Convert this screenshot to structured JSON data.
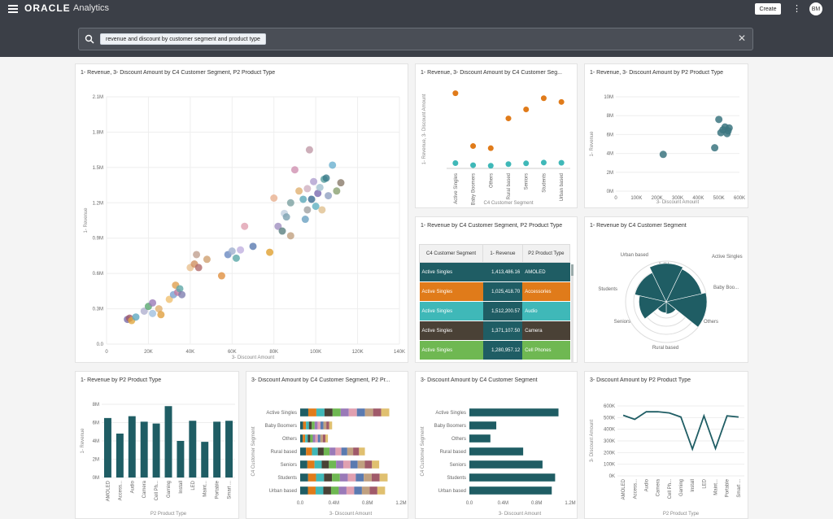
{
  "header": {
    "logo": "ORACLE",
    "app_name": "Analytics",
    "create_label": "Create",
    "menu_label": "⋮",
    "avatar_initials": "BM"
  },
  "search": {
    "query": "revenue and discount by customer segment and product type",
    "clear_label": "✕"
  },
  "colors": {
    "teal": "#1f5d64",
    "orange": "#e07b1a",
    "aqua": "#3fb8b8"
  },
  "cards": [
    {
      "title": "1- Revenue, 3- Discount Amount by C4 Customer Segment, P2 Product Type"
    },
    {
      "title": "1- Revenue, 3- Discount Amount by C4 Customer Seg..."
    },
    {
      "title": "1- Revenue, 3- Discount Amount by P2 Product Type"
    },
    {
      "title": "1- Revenue by C4 Customer Segment, P2 Product Type"
    },
    {
      "title": "1- Revenue by C4 Customer Segment"
    },
    {
      "title": "1- Revenue by P2 Product Type"
    },
    {
      "title": "3- Discount Amount by C4 Customer Segment, P2 Pr..."
    },
    {
      "title": "3- Discount Amount by C4 Customer Segment"
    },
    {
      "title": "3- Discount Amount by P2 Product Type"
    }
  ],
  "chart_data": [
    {
      "type": "scatter",
      "title": "1- Revenue, 3- Discount Amount by C4 Customer Segment, P2 Product Type",
      "xlabel": "3- Discount Amount",
      "ylabel": "1- Revenue",
      "xlim": [
        0,
        140000
      ],
      "ylim": [
        0,
        2100000
      ],
      "xticks": [
        "0",
        "20K",
        "40K",
        "60K",
        "80K",
        "100K",
        "120K",
        "140K"
      ],
      "yticks": [
        "0.0",
        "0.3M",
        "0.6M",
        "0.9M",
        "1.2M",
        "1.5M",
        "1.8M",
        "2.1M"
      ],
      "points": [
        [
          10000,
          210000,
          "#7a6ba8"
        ],
        [
          11000,
          220000,
          "#a05a6a"
        ],
        [
          12000,
          200000,
          "#e0a840"
        ],
        [
          14000,
          230000,
          "#5fa8c0"
        ],
        [
          18000,
          280000,
          "#b0b0d0"
        ],
        [
          20000,
          320000,
          "#5aa870"
        ],
        [
          22000,
          350000,
          "#9a7ab8"
        ],
        [
          25000,
          300000,
          "#e0b070"
        ],
        [
          30000,
          380000,
          "#f0c070"
        ],
        [
          32000,
          420000,
          "#7aa0d0"
        ],
        [
          33000,
          500000,
          "#e0a050"
        ],
        [
          34000,
          440000,
          "#c07aa0"
        ],
        [
          35000,
          470000,
          "#5fa8a8"
        ],
        [
          36000,
          420000,
          "#8080b0"
        ],
        [
          22000,
          260000,
          "#a0c0e0"
        ],
        [
          26000,
          250000,
          "#e0a040"
        ],
        [
          40000,
          650000,
          "#e8c090"
        ],
        [
          42000,
          680000,
          "#d09060"
        ],
        [
          43000,
          760000,
          "#c0a090"
        ],
        [
          44000,
          650000,
          "#b06a6a"
        ],
        [
          48000,
          720000,
          "#d0a070"
        ],
        [
          55000,
          580000,
          "#e09040"
        ],
        [
          58000,
          760000,
          "#6a8ac0"
        ],
        [
          60000,
          790000,
          "#a0b0d0"
        ],
        [
          62000,
          730000,
          "#5aa8a8"
        ],
        [
          64000,
          800000,
          "#c0b0e0"
        ],
        [
          66000,
          1000000,
          "#e0a0b0"
        ],
        [
          70000,
          830000,
          "#5a7ab0"
        ],
        [
          78000,
          780000,
          "#e0a030"
        ],
        [
          80000,
          1240000,
          "#e8b090"
        ],
        [
          82000,
          1000000,
          "#a090c0"
        ],
        [
          84000,
          960000,
          "#5a8080"
        ],
        [
          85000,
          1110000,
          "#c0d0e0"
        ],
        [
          86000,
          1080000,
          "#7aa0b0"
        ],
        [
          88000,
          920000,
          "#c0a080"
        ],
        [
          90000,
          1480000,
          "#d090b0"
        ],
        [
          92000,
          1300000,
          "#e0b070"
        ],
        [
          94000,
          1230000,
          "#5aa8b8"
        ],
        [
          95000,
          1060000,
          "#6aa0c0"
        ],
        [
          96000,
          1140000,
          "#a0a0a0"
        ],
        [
          97000,
          1650000,
          "#c09aa8"
        ],
        [
          98000,
          1230000,
          "#3a6a90"
        ],
        [
          99000,
          1380000,
          "#b0a0d0"
        ],
        [
          100000,
          1170000,
          "#5fb0c0"
        ],
        [
          101000,
          1280000,
          "#7a6ab0"
        ],
        [
          102000,
          1330000,
          "#a0c0d0"
        ],
        [
          103000,
          1140000,
          "#e0c090"
        ],
        [
          104000,
          1400000,
          "#5aa0a0"
        ],
        [
          105000,
          1410000,
          "#3a7a8a"
        ],
        [
          106000,
          1260000,
          "#90a0c0"
        ],
        [
          108000,
          1520000,
          "#6ab0d0"
        ],
        [
          110000,
          1300000,
          "#8aa070"
        ],
        [
          112000,
          1370000,
          "#8a7a6a"
        ],
        [
          96000,
          1320000,
          "#d0b0c0"
        ],
        [
          88000,
          1200000,
          "#7aa0a0"
        ]
      ]
    },
    {
      "type": "scatter",
      "title": "1- Revenue, 3- Discount Amount by C4 Customer Segment",
      "xlabel": "C4 Customer Segment",
      "ylabel": "1- Revenue, 3- Discount Amount",
      "categories": [
        "Active Singles",
        "Baby Boomers",
        "Others",
        "Rural based",
        "Seniors",
        "Students",
        "Urban based"
      ],
      "series": [
        {
          "name": "1- Revenue",
          "values": [
            1413486,
            420000,
            380000,
            940000,
            1110000,
            1320000,
            1250000
          ]
        },
        {
          "name": "3- Discount Amount",
          "values": [
            100000,
            60000,
            50000,
            80000,
            95000,
            110000,
            105000
          ]
        }
      ]
    },
    {
      "type": "scatter",
      "title": "1- Revenue, 3- Discount Amount by P2 Product Type",
      "xlabel": "3- Discount Amount",
      "ylabel": "1- Revenue",
      "xlim": [
        0,
        600000
      ],
      "ylim": [
        0,
        10000000
      ],
      "xticks": [
        "0",
        "100K",
        "200K",
        "300K",
        "400K",
        "500K",
        "600K"
      ],
      "yticks": [
        "0M",
        "2M",
        "4M",
        "6M",
        "8M",
        "10M"
      ],
      "points": [
        [
          230000,
          3900000
        ],
        [
          480000,
          4600000
        ],
        [
          500000,
          7600000
        ],
        [
          510000,
          6200000
        ],
        [
          520000,
          6500000
        ],
        [
          530000,
          6800000
        ],
        [
          540000,
          6100000
        ],
        [
          550000,
          6700000
        ],
        [
          545000,
          6400000
        ]
      ]
    },
    {
      "type": "table",
      "columns": [
        "C4 Customer Segment",
        "1- Revenue",
        "P2 Product Type"
      ],
      "rows": [
        {
          "segment": "Active Singles",
          "revenue": "1,413,486.16",
          "ptype": "AMOLED",
          "color": "#1f5d64"
        },
        {
          "segment": "Active Singles",
          "revenue": "1,025,418.70",
          "ptype": "Accessories",
          "color": "#e07b1a"
        },
        {
          "segment": "Active Singles",
          "revenue": "1,512,200.57",
          "ptype": "Audio",
          "color": "#3fb8b8"
        },
        {
          "segment": "Active Singles",
          "revenue": "1,371,107.50",
          "ptype": "Camera",
          "color": "#4a4136"
        },
        {
          "segment": "Active Singles",
          "revenue": "1,280,957.12",
          "ptype": "Cell Phones",
          "color": "#6fb852"
        }
      ]
    },
    {
      "type": "pie",
      "title": "1- Revenue by C4 Customer Segment",
      "categories": [
        "Active Singles",
        "Baby Boo...",
        "Others",
        "Rural based",
        "Seniors",
        "Students",
        "Urban based"
      ],
      "values": [
        1400000,
        420000,
        380000,
        940000,
        1110000,
        1320000,
        1250000
      ],
      "ring_labels": [
        "1.4M",
        "1.2M",
        "0.8M",
        "0.6M",
        "0.4M"
      ]
    },
    {
      "type": "bar",
      "title": "1- Revenue by P2 Product Type",
      "xlabel": "P2 Product Type",
      "ylabel": "1- Revenue",
      "ylim": [
        0,
        8000000
      ],
      "yticks": [
        "0M",
        "2M",
        "4M",
        "6M",
        "8M"
      ],
      "categories": [
        "AMOLED",
        "Access...",
        "Audio",
        "Camera",
        "Cell Ph...",
        "Gaming",
        "Install",
        "LED",
        "Maint...",
        "Portable",
        "Smart ..."
      ],
      "values": [
        6500000,
        4800000,
        6700000,
        6100000,
        5900000,
        7800000,
        4000000,
        6200000,
        3900000,
        6100000,
        6200000
      ]
    },
    {
      "type": "bar",
      "title": "3- Discount Amount by C4 Customer Segment, P2 Product Type",
      "xlabel": "3- Discount Amount",
      "ylabel": "C4 Customer Segment",
      "categories": [
        "Active Singles",
        "Baby Boomers",
        "Others",
        "Rural based",
        "Seniors",
        "Students",
        "Urban based"
      ],
      "values": [
        1060000,
        380000,
        330000,
        770000,
        940000,
        1040000,
        1010000
      ],
      "xlim": [
        0,
        1200000
      ],
      "xticks": [
        "0.0",
        "0.4M",
        "0.8M",
        "1.2M"
      ]
    },
    {
      "type": "bar",
      "title": "3- Discount Amount by C4 Customer Segment",
      "xlabel": "3- Discount Amount",
      "ylabel": "C4 Customer Segment",
      "categories": [
        "Active Singles",
        "Baby Boomers",
        "Others",
        "Rural based",
        "Seniors",
        "Students",
        "Urban based"
      ],
      "values": [
        1060000,
        320000,
        250000,
        640000,
        870000,
        1020000,
        980000
      ],
      "xlim": [
        0,
        1200000
      ],
      "xticks": [
        "0.0",
        "0.4M",
        "0.8M",
        "1.2M"
      ]
    },
    {
      "type": "line",
      "title": "3- Discount Amount by P2 Product Type",
      "xlabel": "P2 Product Type",
      "ylabel": "3- Discount Amount",
      "ylim": [
        0,
        600000
      ],
      "yticks": [
        "0K",
        "100K",
        "200K",
        "300K",
        "400K",
        "500K",
        "600K"
      ],
      "categories": [
        "AMOLED",
        "Access...",
        "Audio",
        "Camera",
        "Cell Ph...",
        "Gaming",
        "Install",
        "LED",
        "Maint...",
        "Portable",
        "Smart ..."
      ],
      "values": [
        520000,
        485000,
        550000,
        550000,
        540000,
        505000,
        230000,
        515000,
        235000,
        515000,
        505000
      ]
    }
  ]
}
